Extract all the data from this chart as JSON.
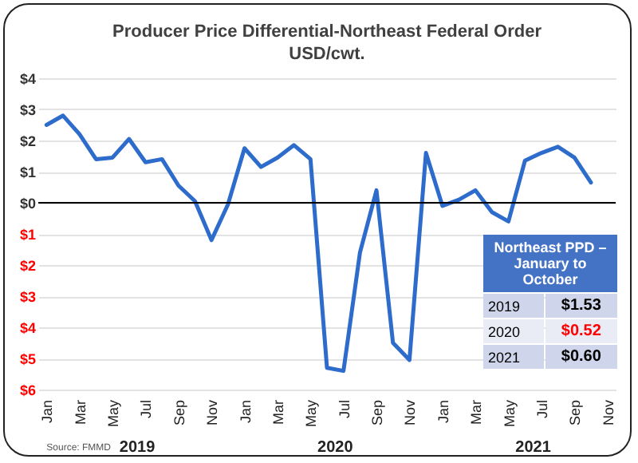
{
  "chart_data": {
    "type": "line",
    "title": "Producer Price Differential-Northeast Federal Order",
    "subtitle": "USD/cwt.",
    "categories": [
      "Jan",
      null,
      "Mar",
      null,
      "May",
      null,
      "Jul",
      null,
      "Sep",
      null,
      "Nov",
      null,
      "Jan",
      null,
      "Mar",
      null,
      "May",
      null,
      "Jul",
      null,
      "Sep",
      null,
      "Nov",
      null,
      "Jan",
      null,
      "Mar",
      null,
      "May",
      null,
      "Jul",
      null,
      "Sep",
      null,
      "Nov"
    ],
    "series": [
      {
        "color": "#2e6ccc",
        "values": [
          2.5,
          2.8,
          2.2,
          1.4,
          1.45,
          2.05,
          1.3,
          1.4,
          0.55,
          0.05,
          -1.2,
          -0.05,
          1.75,
          1.15,
          1.45,
          1.85,
          1.4,
          -5.3,
          -5.4,
          -1.6,
          0.4,
          -4.5,
          -5.05,
          1.6,
          -0.1,
          0.1,
          0.4,
          -0.3,
          -0.6,
          1.35,
          1.6,
          1.8,
          1.45,
          0.65,
          null
        ]
      }
    ],
    "ylim": [
      -6,
      4
    ],
    "yticks": [
      {
        "value": -6,
        "label": "$6"
      },
      {
        "value": -5,
        "label": "$5"
      },
      {
        "value": -4,
        "label": "$4"
      },
      {
        "value": -3,
        "label": "$3"
      },
      {
        "value": -2,
        "label": "$2"
      },
      {
        "value": -1,
        "label": "$1"
      },
      {
        "value": 0,
        "label": "$0"
      },
      {
        "value": 1,
        "label": "$1"
      },
      {
        "value": 2,
        "label": "$2"
      },
      {
        "value": 3,
        "label": "$3"
      },
      {
        "value": 4,
        "label": "$4"
      }
    ],
    "grid": "y",
    "legend": false,
    "marker": "none",
    "line_style": "solid",
    "annotations": [
      "Source: FMMD",
      "2019",
      "2020",
      "2021",
      "Northeast PPD – January to October",
      "2019",
      "$1.53",
      "2020",
      "$0.52",
      "2021",
      "$0.60"
    ]
  }
}
